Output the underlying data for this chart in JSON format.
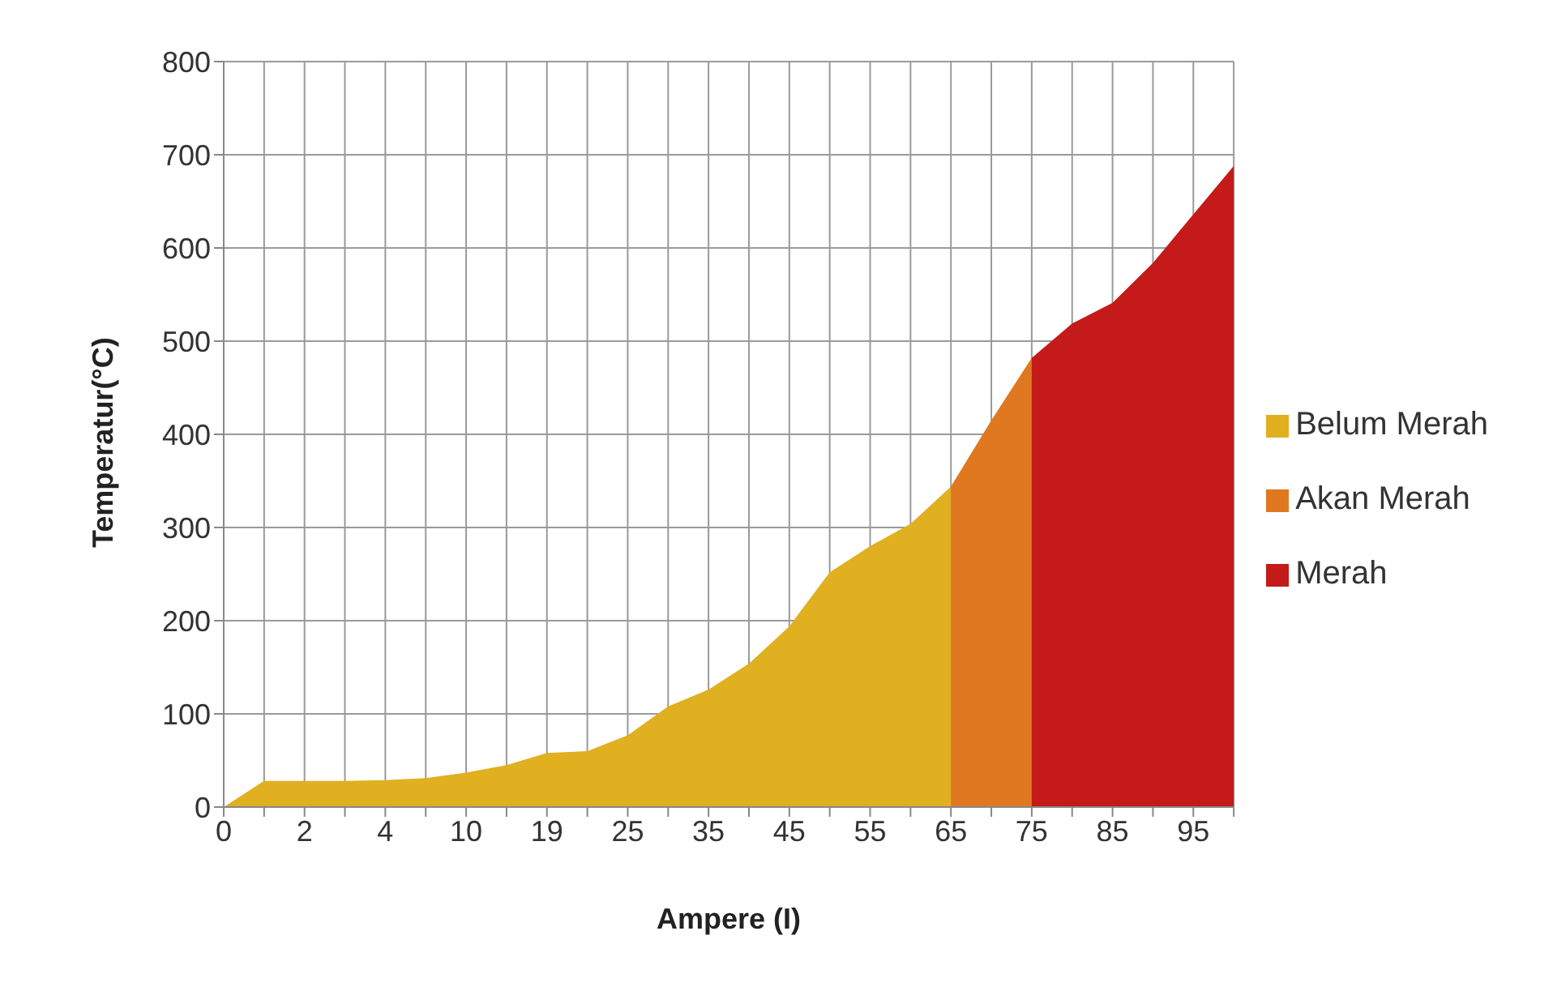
{
  "chart_data": {
    "type": "area",
    "xlabel": "Ampere (I)",
    "ylabel": "Temperatur(°C)",
    "categories": [
      "0",
      null,
      "2",
      null,
      "4",
      null,
      "10",
      null,
      "19",
      null,
      "25",
      null,
      "35",
      null,
      "45",
      null,
      "55",
      null,
      "65",
      null,
      "75",
      null,
      "85",
      null,
      "95",
      null
    ],
    "series": [
      {
        "name": "Belum Merah",
        "color": "#e0b020",
        "values": [
          0,
          28,
          28,
          28,
          29,
          31,
          37,
          45,
          58,
          60,
          77,
          108,
          126,
          154,
          194,
          252,
          280,
          304,
          344,
          null,
          null,
          null,
          null,
          null,
          null,
          null
        ]
      },
      {
        "name": "Akan Merah",
        "color": "#e07820",
        "values": [
          null,
          null,
          null,
          null,
          null,
          null,
          null,
          null,
          null,
          null,
          null,
          null,
          null,
          null,
          null,
          null,
          null,
          null,
          344,
          415,
          482,
          null,
          null,
          null,
          null,
          null
        ]
      },
      {
        "name": "Merah",
        "color": "#c41a1a",
        "values": [
          null,
          null,
          null,
          null,
          null,
          null,
          null,
          null,
          null,
          null,
          null,
          null,
          null,
          null,
          null,
          null,
          null,
          null,
          null,
          null,
          482,
          519,
          541,
          584,
          636,
          688
        ]
      }
    ],
    "ylim": [
      0,
      800
    ],
    "yticks": [
      0,
      100,
      200,
      300,
      400,
      500,
      600,
      700,
      800
    ],
    "grid": true,
    "legend": "right"
  }
}
